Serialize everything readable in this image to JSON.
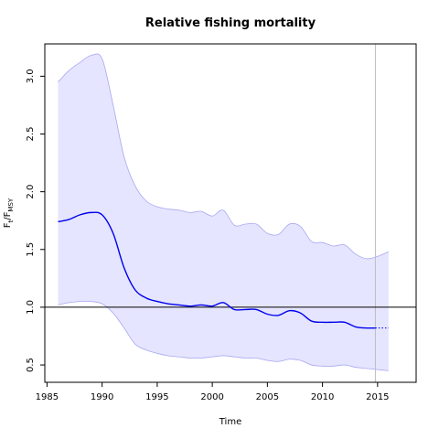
{
  "chart_data": {
    "type": "line",
    "title": "Relative fishing mortality",
    "xlabel": "Time",
    "ylabel": {
      "main": "F",
      "sub_main": "t",
      "mid": "/F",
      "sub_tail": "MSY"
    },
    "xlim": [
      1984.8,
      2018.5
    ],
    "ylim": [
      0.35,
      3.28
    ],
    "x_ticks": [
      1985,
      1990,
      1995,
      2000,
      2005,
      2010,
      2015
    ],
    "y_ticks": [
      0.5,
      1.0,
      1.5,
      2.0,
      2.5,
      3.0
    ],
    "y_tick_labels": [
      "0.5",
      "1.0",
      "1.5",
      "2.0",
      "2.5",
      "3.0"
    ],
    "reference_line": 1.0,
    "vertical_marker_x": 2014.8,
    "colors": {
      "line": "#0000ee",
      "band_fill": "#e5e5ff",
      "band_edge": "#a8a8f0",
      "ref": "#000000",
      "marker": "#bdbdbd"
    },
    "series": [
      {
        "role": "estimate",
        "x": [
          1986,
          1987,
          1988,
          1989,
          1990,
          1991,
          1992,
          1993,
          1994,
          1995,
          1996,
          1997,
          1998,
          1999,
          2000,
          2001,
          2002,
          2003,
          2004,
          2005,
          2006,
          2007,
          2008,
          2009,
          2010,
          2011,
          2012,
          2013,
          2014,
          2014.8
        ],
        "values": [
          1.74,
          1.76,
          1.8,
          1.82,
          1.8,
          1.64,
          1.34,
          1.15,
          1.08,
          1.05,
          1.03,
          1.02,
          1.01,
          1.02,
          1.01,
          1.04,
          0.98,
          0.98,
          0.98,
          0.94,
          0.93,
          0.97,
          0.95,
          0.88,
          0.87,
          0.87,
          0.87,
          0.83,
          0.82,
          0.82
        ]
      },
      {
        "role": "forecast",
        "x": [
          2014.8,
          2016
        ],
        "values": [
          0.82,
          0.82
        ]
      },
      {
        "role": "upper",
        "x": [
          1986,
          1987,
          1988,
          1989,
          1990,
          1991,
          1992,
          1993,
          1994,
          1995,
          1996,
          1997,
          1998,
          1999,
          2000,
          2001,
          2002,
          2003,
          2004,
          2005,
          2006,
          2007,
          2008,
          2009,
          2010,
          2011,
          2012,
          2013,
          2014,
          2015,
          2016
        ],
        "values": [
          2.95,
          3.05,
          3.12,
          3.18,
          3.15,
          2.75,
          2.3,
          2.05,
          1.92,
          1.87,
          1.85,
          1.84,
          1.82,
          1.83,
          1.79,
          1.84,
          1.71,
          1.72,
          1.72,
          1.64,
          1.63,
          1.72,
          1.7,
          1.57,
          1.56,
          1.53,
          1.54,
          1.46,
          1.42,
          1.44,
          1.48
        ]
      },
      {
        "role": "lower",
        "x": [
          1986,
          1987,
          1988,
          1989,
          1990,
          1991,
          1992,
          1993,
          1994,
          1995,
          1996,
          1997,
          1998,
          1999,
          2000,
          2001,
          2002,
          2003,
          2004,
          2005,
          2006,
          2007,
          2008,
          2009,
          2010,
          2011,
          2012,
          2013,
          2014,
          2015,
          2016
        ],
        "values": [
          1.02,
          1.04,
          1.05,
          1.05,
          1.03,
          0.95,
          0.82,
          0.68,
          0.63,
          0.6,
          0.58,
          0.57,
          0.56,
          0.56,
          0.57,
          0.58,
          0.57,
          0.56,
          0.56,
          0.54,
          0.53,
          0.55,
          0.54,
          0.5,
          0.49,
          0.49,
          0.5,
          0.48,
          0.47,
          0.46,
          0.45
        ]
      }
    ]
  }
}
